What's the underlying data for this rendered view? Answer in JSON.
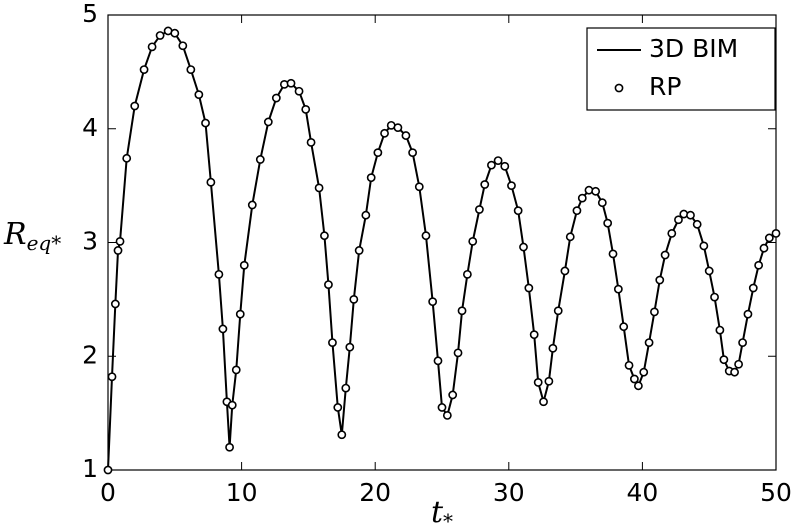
{
  "chart_data": {
    "type": "line",
    "xlabel": {
      "base": "t",
      "sub": "*"
    },
    "ylabel": {
      "base": "R",
      "sub": "eq*"
    },
    "xlim": [
      0,
      50
    ],
    "xticks": [
      0,
      10,
      20,
      30,
      40,
      50
    ],
    "ylim": [
      1,
      5
    ],
    "yticks": [
      1,
      2,
      3,
      4,
      5
    ],
    "grid": false,
    "legend": "upper right",
    "series": [
      {
        "name": "3D BIM",
        "color": "#000000",
        "style": "line",
        "x": [
          0,
          0.3,
          0.55,
          0.75,
          0.9,
          1.4,
          2.0,
          2.7,
          3.3,
          3.9,
          4.5,
          5.0,
          5.6,
          6.2,
          6.8,
          7.3,
          7.7,
          8.3,
          8.6,
          8.9,
          9.1,
          9.3,
          9.6,
          9.9,
          10.2,
          10.8,
          11.4,
          12.0,
          12.6,
          13.2,
          13.7,
          14.3,
          14.8,
          15.2,
          15.8,
          16.2,
          16.5,
          16.8,
          17.2,
          17.5,
          17.8,
          18.1,
          18.4,
          18.8,
          19.3,
          19.7,
          20.2,
          20.7,
          21.2,
          21.7,
          22.3,
          22.8,
          23.3,
          23.8,
          24.3,
          24.7,
          25.0,
          25.4,
          25.8,
          26.2,
          26.5,
          26.9,
          27.3,
          27.8,
          28.2,
          28.7,
          29.2,
          29.7,
          30.2,
          30.7,
          31.1,
          31.5,
          31.9,
          32.2,
          32.6,
          33.0,
          33.3,
          33.7,
          34.2,
          34.6,
          35.1,
          35.5,
          36.0,
          36.5,
          37.0,
          37.4,
          37.8,
          38.2,
          38.6,
          39.0,
          39.4,
          39.7,
          40.1,
          40.5,
          40.9,
          41.3,
          41.7,
          42.2,
          42.7,
          43.1,
          43.6,
          44.1,
          44.6,
          45.0,
          45.4,
          45.8,
          46.1,
          46.5,
          46.9,
          47.2,
          47.5,
          47.9,
          48.3,
          48.7,
          49.1,
          49.5,
          50.0
        ],
        "values": [
          1.0,
          1.82,
          2.46,
          2.93,
          3.01,
          3.74,
          4.2,
          4.52,
          4.72,
          4.82,
          4.86,
          4.84,
          4.73,
          4.52,
          4.3,
          4.05,
          3.53,
          2.72,
          2.24,
          1.6,
          1.2,
          1.57,
          1.88,
          2.37,
          2.8,
          3.33,
          3.73,
          4.06,
          4.27,
          4.39,
          4.4,
          4.33,
          4.17,
          3.88,
          3.48,
          3.06,
          2.63,
          2.12,
          1.55,
          1.31,
          1.72,
          2.08,
          2.5,
          2.93,
          3.24,
          3.57,
          3.79,
          3.96,
          4.03,
          4.01,
          3.94,
          3.79,
          3.49,
          3.06,
          2.48,
          1.96,
          1.55,
          1.48,
          1.66,
          2.03,
          2.4,
          2.72,
          3.01,
          3.29,
          3.51,
          3.68,
          3.72,
          3.67,
          3.5,
          3.28,
          2.96,
          2.6,
          2.19,
          1.77,
          1.6,
          1.78,
          2.07,
          2.4,
          2.75,
          3.05,
          3.28,
          3.39,
          3.46,
          3.45,
          3.35,
          3.17,
          2.9,
          2.59,
          2.26,
          1.92,
          1.8,
          1.74,
          1.86,
          2.12,
          2.39,
          2.67,
          2.89,
          3.08,
          3.2,
          3.25,
          3.24,
          3.16,
          2.97,
          2.75,
          2.52,
          2.23,
          1.97,
          1.87,
          1.86,
          1.93,
          2.12,
          2.37,
          2.6,
          2.8,
          2.95,
          3.04,
          3.08
        ]
      },
      {
        "name": "RP",
        "color": "#000000",
        "style": "marker",
        "x": [
          0,
          0.3,
          0.55,
          0.75,
          0.9,
          1.4,
          2.0,
          2.7,
          3.3,
          3.9,
          4.5,
          5.0,
          5.6,
          6.2,
          6.8,
          7.3,
          7.7,
          8.3,
          8.6,
          8.9,
          9.1,
          9.3,
          9.6,
          9.9,
          10.2,
          10.8,
          11.4,
          12.0,
          12.6,
          13.2,
          13.7,
          14.3,
          14.8,
          15.2,
          15.8,
          16.2,
          16.5,
          16.8,
          17.2,
          17.5,
          17.8,
          18.1,
          18.4,
          18.8,
          19.3,
          19.7,
          20.2,
          20.7,
          21.2,
          21.7,
          22.3,
          22.8,
          23.3,
          23.8,
          24.3,
          24.7,
          25.0,
          25.4,
          25.8,
          26.2,
          26.5,
          26.9,
          27.3,
          27.8,
          28.2,
          28.7,
          29.2,
          29.7,
          30.2,
          30.7,
          31.1,
          31.5,
          31.9,
          32.2,
          32.6,
          33.0,
          33.3,
          33.7,
          34.2,
          34.6,
          35.1,
          35.5,
          36.0,
          36.5,
          37.0,
          37.4,
          37.8,
          38.2,
          38.6,
          39.0,
          39.4,
          39.7,
          40.1,
          40.5,
          40.9,
          41.3,
          41.7,
          42.2,
          42.7,
          43.1,
          43.6,
          44.1,
          44.6,
          45.0,
          45.4,
          45.8,
          46.1,
          46.5,
          46.9,
          47.2,
          47.5,
          47.9,
          48.3,
          48.7,
          49.1,
          49.5,
          50.0
        ],
        "values": [
          1.0,
          1.82,
          2.46,
          2.93,
          3.01,
          3.74,
          4.2,
          4.52,
          4.72,
          4.82,
          4.86,
          4.84,
          4.73,
          4.52,
          4.3,
          4.05,
          3.53,
          2.72,
          2.24,
          1.6,
          1.2,
          1.57,
          1.88,
          2.37,
          2.8,
          3.33,
          3.73,
          4.06,
          4.27,
          4.39,
          4.4,
          4.33,
          4.17,
          3.88,
          3.48,
          3.06,
          2.63,
          2.12,
          1.55,
          1.31,
          1.72,
          2.08,
          2.5,
          2.93,
          3.24,
          3.57,
          3.79,
          3.96,
          4.03,
          4.01,
          3.94,
          3.79,
          3.49,
          3.06,
          2.48,
          1.96,
          1.55,
          1.48,
          1.66,
          2.03,
          2.4,
          2.72,
          3.01,
          3.29,
          3.51,
          3.68,
          3.72,
          3.67,
          3.5,
          3.28,
          2.96,
          2.6,
          2.19,
          1.77,
          1.6,
          1.78,
          2.07,
          2.4,
          2.75,
          3.05,
          3.28,
          3.39,
          3.46,
          3.45,
          3.35,
          3.17,
          2.9,
          2.59,
          2.26,
          1.92,
          1.8,
          1.74,
          1.86,
          2.12,
          2.39,
          2.67,
          2.89,
          3.08,
          3.2,
          3.25,
          3.24,
          3.16,
          2.97,
          2.75,
          2.52,
          2.23,
          1.97,
          1.87,
          1.86,
          1.93,
          2.12,
          2.37,
          2.6,
          2.8,
          2.95,
          3.04,
          3.08
        ]
      }
    ]
  }
}
